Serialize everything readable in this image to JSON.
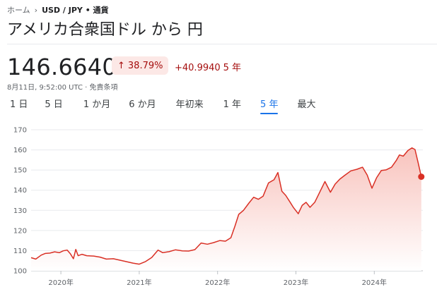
{
  "breadcrumb": {
    "home": "ホーム",
    "current": "USD / JPY • 通貨"
  },
  "title": "アメリカ合衆国ドル から 円",
  "quote": {
    "price": "146.6640",
    "change_pct": "38.79%",
    "change_arrow": "↑",
    "change_abs": "+40.9940",
    "change_period": "5 年",
    "timestamp": "8月11日, 9:52:00 UTC · 免責条項"
  },
  "tabs": [
    "1 日",
    "5 日",
    "1 か月",
    "6 か月",
    "年初来",
    "1 年",
    "5 年",
    "最大"
  ],
  "active_tab": "5 年",
  "colors": {
    "line": "#d93025",
    "fill_top": "#f8c3bd",
    "fill_bottom": "#ffffff",
    "grid": "#e8eaed",
    "accent": "#1a73e8"
  },
  "chart_data": {
    "type": "area",
    "title": "",
    "xlabel": "",
    "ylabel": "",
    "ylim": [
      100,
      170
    ],
    "yticks": [
      100,
      110,
      120,
      130,
      140,
      150,
      160,
      170
    ],
    "xticks": [
      {
        "label": "2020年",
        "t": 2020.0
      },
      {
        "label": "2021年",
        "t": 2021.0
      },
      {
        "label": "2022年",
        "t": 2022.0
      },
      {
        "label": "2023年",
        "t": 2023.0
      },
      {
        "label": "2024年",
        "t": 2024.0
      }
    ],
    "xlim": [
      2019.62,
      2024.62
    ],
    "grid": true,
    "series": [
      {
        "points": [
          [
            2019.62,
            106.5
          ],
          [
            2019.68,
            105.8
          ],
          [
            2019.75,
            107.8
          ],
          [
            2019.8,
            108.6
          ],
          [
            2019.86,
            108.8
          ],
          [
            2019.92,
            109.4
          ],
          [
            2019.98,
            109.0
          ],
          [
            2020.03,
            109.9
          ],
          [
            2020.08,
            110.3
          ],
          [
            2020.12,
            108.5
          ],
          [
            2020.16,
            106.0
          ],
          [
            2020.19,
            110.6
          ],
          [
            2020.22,
            107.5
          ],
          [
            2020.27,
            108.2
          ],
          [
            2020.33,
            107.5
          ],
          [
            2020.42,
            107.3
          ],
          [
            2020.5,
            106.8
          ],
          [
            2020.58,
            105.8
          ],
          [
            2020.67,
            106.0
          ],
          [
            2020.75,
            105.3
          ],
          [
            2020.83,
            104.6
          ],
          [
            2020.92,
            103.8
          ],
          [
            2021.0,
            103.3
          ],
          [
            2021.08,
            104.6
          ],
          [
            2021.16,
            106.6
          ],
          [
            2021.24,
            110.3
          ],
          [
            2021.3,
            109.0
          ],
          [
            2021.38,
            109.5
          ],
          [
            2021.46,
            110.4
          ],
          [
            2021.55,
            109.9
          ],
          [
            2021.63,
            109.8
          ],
          [
            2021.71,
            110.5
          ],
          [
            2021.79,
            113.8
          ],
          [
            2021.87,
            113.2
          ],
          [
            2021.95,
            114.0
          ],
          [
            2022.03,
            115.0
          ],
          [
            2022.1,
            114.7
          ],
          [
            2022.17,
            116.4
          ],
          [
            2022.22,
            122.0
          ],
          [
            2022.27,
            128.0
          ],
          [
            2022.33,
            130.0
          ],
          [
            2022.4,
            133.6
          ],
          [
            2022.46,
            136.5
          ],
          [
            2022.52,
            135.5
          ],
          [
            2022.58,
            137.0
          ],
          [
            2022.65,
            143.6
          ],
          [
            2022.72,
            145.2
          ],
          [
            2022.77,
            148.8
          ],
          [
            2022.82,
            139.5
          ],
          [
            2022.87,
            137.4
          ],
          [
            2022.92,
            134.4
          ],
          [
            2022.97,
            131.3
          ],
          [
            2023.03,
            128.3
          ],
          [
            2023.08,
            132.5
          ],
          [
            2023.13,
            134.0
          ],
          [
            2023.18,
            131.5
          ],
          [
            2023.24,
            134.0
          ],
          [
            2023.3,
            138.7
          ],
          [
            2023.37,
            144.3
          ],
          [
            2023.44,
            139.0
          ],
          [
            2023.5,
            143.0
          ],
          [
            2023.56,
            145.5
          ],
          [
            2023.62,
            147.3
          ],
          [
            2023.7,
            149.6
          ],
          [
            2023.78,
            150.4
          ],
          [
            2023.85,
            151.4
          ],
          [
            2023.91,
            147.5
          ],
          [
            2023.97,
            141.0
          ],
          [
            2024.03,
            146.2
          ],
          [
            2024.09,
            149.8
          ],
          [
            2024.15,
            150.1
          ],
          [
            2024.22,
            151.4
          ],
          [
            2024.28,
            154.7
          ],
          [
            2024.32,
            157.5
          ],
          [
            2024.37,
            156.9
          ],
          [
            2024.43,
            159.7
          ],
          [
            2024.48,
            161.0
          ],
          [
            2024.52,
            160.2
          ],
          [
            2024.56,
            153.5
          ],
          [
            2024.6,
            146.7
          ]
        ]
      }
    ]
  }
}
